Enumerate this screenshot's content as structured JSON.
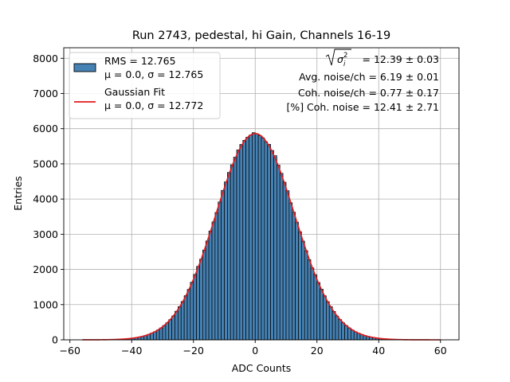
{
  "chart_data": {
    "type": "bar",
    "title": "Run 2743, pedestal, hi Gain, Channels 16-19",
    "xlabel": "ADC Counts",
    "ylabel": "Entries",
    "xlim": [
      -62,
      66
    ],
    "ylim": [
      0,
      8300
    ],
    "xticks": [
      -60,
      -40,
      -20,
      0,
      20,
      40,
      60
    ],
    "yticks": [
      0,
      1000,
      2000,
      3000,
      4000,
      5000,
      6000,
      7000,
      8000
    ],
    "grid": true,
    "bar_color": "#4682b4",
    "fit_color": "#e31a1c",
    "histogram": {
      "bin_width": 1,
      "bin_start": -56,
      "bin_end": 60,
      "peak": 5900,
      "mean": 0.0,
      "sigma": 12.765
    },
    "fit": {
      "amplitude": 5860,
      "mean": 0.0,
      "sigma": 12.772,
      "x_range": [
        -56,
        60
      ]
    },
    "legend": {
      "placement": "upper-left",
      "entries": [
        {
          "kind": "patch",
          "line1": "RMS = 12.765",
          "line2": "μ = 0.0, σ = 12.765"
        },
        {
          "kind": "line",
          "line1": "Gaussian Fit",
          "line2": "μ = 0.0, σ = 12.772"
        }
      ]
    },
    "annotations": {
      "sigma_total": "= 12.39 ± 0.03",
      "avg_noise": "Avg. noise/ch = 6.19 ± 0.01",
      "coh_noise": "Coh. noise/ch = 0.77 ± 0.17",
      "coh_pct": "[%] Coh. noise = 12.41 ± 2.71"
    }
  }
}
